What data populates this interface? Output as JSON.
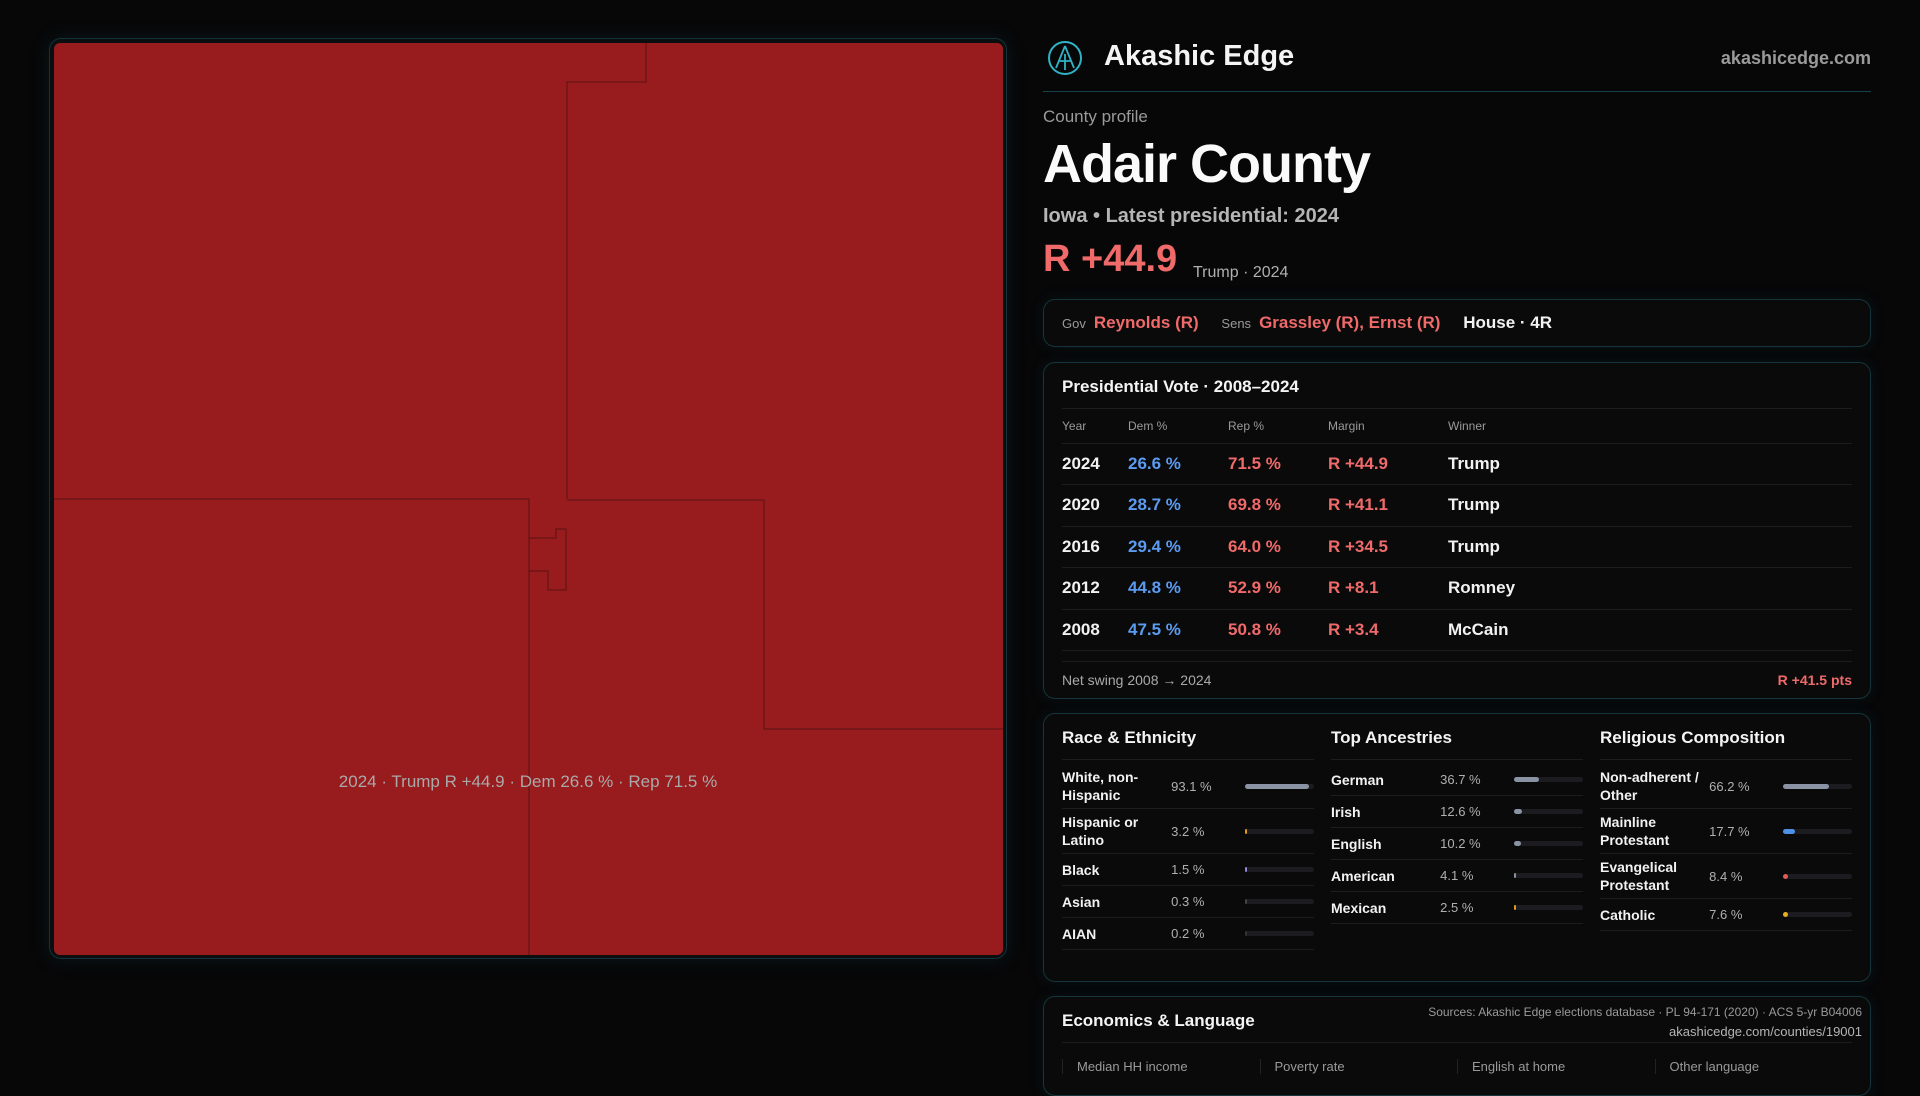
{
  "map": {
    "fill": "#981b1e",
    "caption": "2024 · Trump R +44.9 · Dem 26.6 % · Rep 71.5 %"
  },
  "header": {
    "brand": "Akashic Edge",
    "site": "akashicedge.com",
    "logo_icon": "akashic-emblem-icon"
  },
  "profile": {
    "kicker": "County profile",
    "title": "Adair County",
    "subtitle": "Iowa • Latest presidential: 2024",
    "margin": "R +44.9",
    "margin_sub": "Trump · 2024"
  },
  "leaders": {
    "gov_label": "Gov",
    "gov": "Reynolds (R)",
    "sens_label": "Sens",
    "sens": "Grassley (R), Ernst (R)",
    "house": "House · 4R"
  },
  "presidential": {
    "title": "Presidential Vote · 2008–2024",
    "headers": [
      "Year",
      "Dem %",
      "Rep %",
      "Margin",
      "Winner"
    ],
    "rows": [
      [
        "2024",
        "26.6 %",
        "71.5 %",
        "R +44.9",
        "Trump"
      ],
      [
        "2020",
        "28.7 %",
        "69.8 %",
        "R +41.1",
        "Trump"
      ],
      [
        "2016",
        "29.4 %",
        "64.0 %",
        "R +34.5",
        "Trump"
      ],
      [
        "2012",
        "44.8 %",
        "52.9 %",
        "R +8.1",
        "Romney"
      ],
      [
        "2008",
        "47.5 %",
        "50.8 %",
        "R +3.4",
        "McCain"
      ]
    ],
    "swing_label": "Net swing 2008 → 2024",
    "swing_value": "R +41.5 pts"
  },
  "demographics": [
    {
      "title": "Race & Ethnicity",
      "items": [
        {
          "label": "White, non-Hispanic",
          "value": "93.1 %",
          "pct": 93.1,
          "color": "#8a93a3"
        },
        {
          "label": "Hispanic or Latino",
          "value": "3.2 %",
          "pct": 3.2,
          "color": "#e39a1b"
        },
        {
          "label": "Black",
          "value": "1.5 %",
          "pct": 1.5,
          "color": "#8f86d8"
        },
        {
          "label": "Asian",
          "value": "0.3 %",
          "pct": 0.3,
          "color": "#444"
        },
        {
          "label": "AIAN",
          "value": "0.2 %",
          "pct": 0.2,
          "color": "#333"
        }
      ]
    },
    {
      "title": "Top Ancestries",
      "items": [
        {
          "label": "German",
          "value": "36.7 %",
          "pct": 36.7,
          "color": "#8a93a3"
        },
        {
          "label": "Irish",
          "value": "12.6 %",
          "pct": 12.6,
          "color": "#8a93a3"
        },
        {
          "label": "English",
          "value": "10.2 %",
          "pct": 10.2,
          "color": "#8a93a3"
        },
        {
          "label": "American",
          "value": "4.1 %",
          "pct": 4.1,
          "color": "#8a93a3"
        },
        {
          "label": "Mexican",
          "value": "2.5 %",
          "pct": 2.5,
          "color": "#e39a1b"
        }
      ]
    },
    {
      "title": "Religious Composition",
      "items": [
        {
          "label": "Non-adherent / Other",
          "value": "66.2 %",
          "pct": 66.2,
          "color": "#8a93a3"
        },
        {
          "label": "Mainline Protestant",
          "value": "17.7 %",
          "pct": 17.7,
          "color": "#4f8fe8"
        },
        {
          "label": "Evangelical Protestant",
          "value": "8.4 %",
          "pct": 8.4,
          "color": "#e05a5a"
        },
        {
          "label": "Catholic",
          "value": "7.6 %",
          "pct": 7.6,
          "color": "#e0b020"
        }
      ]
    }
  ],
  "economics": {
    "title": "Economics & Language",
    "columns": [
      "Median HH income",
      "Poverty rate",
      "English at home",
      "Other language"
    ]
  },
  "footer": {
    "sources": "Sources: Akashic Edge elections database · PL 94-171 (2020) · ACS 5-yr B04006",
    "url": "akashicedge.com/counties/19001"
  }
}
